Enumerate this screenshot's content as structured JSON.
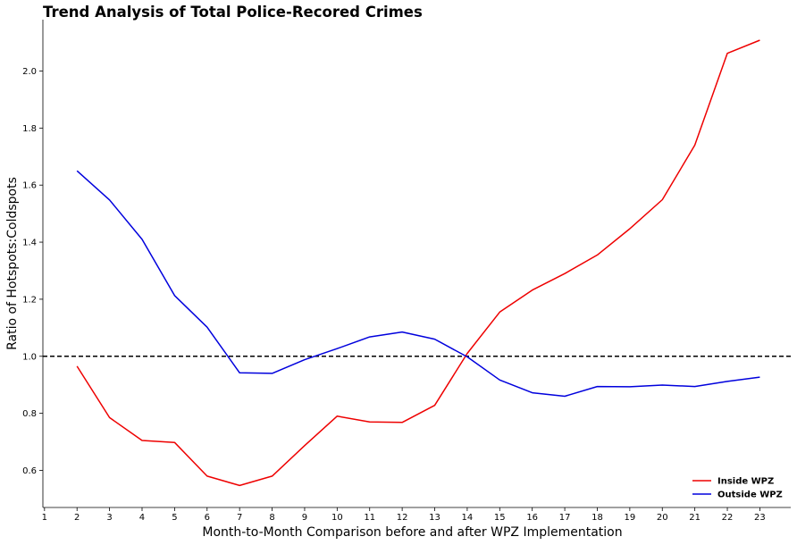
{
  "chart_data": {
    "type": "line",
    "title": "Trend Analysis of Total Police-Recored Crimes",
    "xlabel": "Month-to-Month Comparison before and after WPZ Implementation",
    "ylabel": "Ratio of Hotspots:Coldspots",
    "xlim": [
      0.95,
      23.95
    ],
    "ylim": [
      0.47,
      2.18
    ],
    "x_ticks": [
      "1",
      "2",
      "3",
      "4",
      "5",
      "6",
      "7",
      "8",
      "9",
      "10",
      "11",
      "12",
      "13",
      "14",
      "15",
      "16",
      "17",
      "18",
      "19",
      "20",
      "21",
      "22",
      "23"
    ],
    "y_ticks": [
      "0.6",
      "0.8",
      "1.0",
      "1.2",
      "1.4",
      "1.6",
      "1.8",
      "2.0"
    ],
    "grid": false,
    "legend_position": "bottom-right",
    "reference_line": {
      "y": 1.0,
      "style": "dashed",
      "color": "#000000"
    },
    "x": [
      2,
      3,
      4,
      5,
      6,
      7,
      8,
      9,
      10,
      11,
      12,
      13,
      14,
      15,
      16,
      17,
      18,
      19,
      20,
      21,
      22,
      23
    ],
    "series": [
      {
        "name": "Inside WPZ",
        "color": "#ee0000",
        "values": [
          0.965,
          0.785,
          0.705,
          0.698,
          0.58,
          0.547,
          0.58,
          0.687,
          0.79,
          0.77,
          0.768,
          0.828,
          1.01,
          1.155,
          1.232,
          1.29,
          1.355,
          1.447,
          1.549,
          1.74,
          2.062,
          2.108
        ]
      },
      {
        "name": "Outside WPZ",
        "color": "#0000dd",
        "values": [
          1.65,
          1.548,
          1.41,
          1.213,
          1.102,
          0.942,
          0.94,
          0.988,
          1.027,
          1.068,
          1.085,
          1.06,
          0.998,
          0.917,
          0.872,
          0.86,
          0.894,
          0.893,
          0.899,
          0.894,
          0.912,
          0.927
        ]
      }
    ]
  }
}
